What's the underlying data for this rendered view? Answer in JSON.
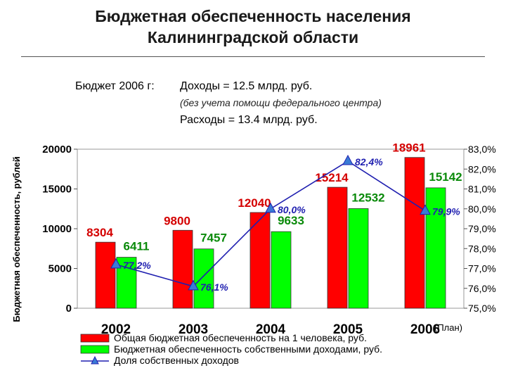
{
  "title_line1": "Бюджетная обеспеченность населения",
  "title_line2": "Калининградской области",
  "budget": {
    "label": "Бюджет 2006 г:",
    "income": "Доходы = 12.5 млрд. руб.",
    "note": "(без учета помощи федерального центра)",
    "expenses": "Расходы = 13.4 млрд. руб."
  },
  "chart_data": {
    "type": "bar",
    "categories": [
      "2002",
      "2003",
      "2004",
      "2005",
      "2006"
    ],
    "category_note": "(План)",
    "ylabel": "Бюджетная обеспеченность, рублей",
    "ylim": [
      0,
      20000
    ],
    "yticks": [
      "0",
      "5000",
      "10000",
      "15000",
      "20000"
    ],
    "y2lim": [
      75.0,
      83.0
    ],
    "y2ticks": [
      "75,0%",
      "76,0%",
      "77,0%",
      "78,0%",
      "79,0%",
      "80,0%",
      "81,0%",
      "82,0%",
      "83,0%"
    ],
    "series": [
      {
        "name": "Общая бюджетная обеспеченность на 1 человека, руб.",
        "type": "bar",
        "color": "#ff0000",
        "values": [
          8304,
          9800,
          12040,
          15214,
          18961
        ],
        "labels": [
          "8304",
          "9800",
          "12040",
          "15214",
          "18961"
        ]
      },
      {
        "name": "Бюджетная обеспеченность собственными доходами, руб.",
        "type": "bar",
        "color": "#00ff00",
        "values": [
          6411,
          7457,
          9633,
          12532,
          15142
        ],
        "labels": [
          "6411",
          "7457",
          "9633",
          "12532",
          "15142"
        ]
      },
      {
        "name": "Доля собственных доходов",
        "type": "line",
        "axis": "right",
        "color": "#1f1fb0",
        "marker_color": "#3a7bd5",
        "values": [
          77.2,
          76.1,
          80.0,
          82.4,
          79.9
        ],
        "labels": [
          "77,2%",
          "76,1%",
          "80,0%",
          "82,4%",
          "79,9%"
        ]
      }
    ],
    "grid": false,
    "legend_position": "bottom"
  }
}
